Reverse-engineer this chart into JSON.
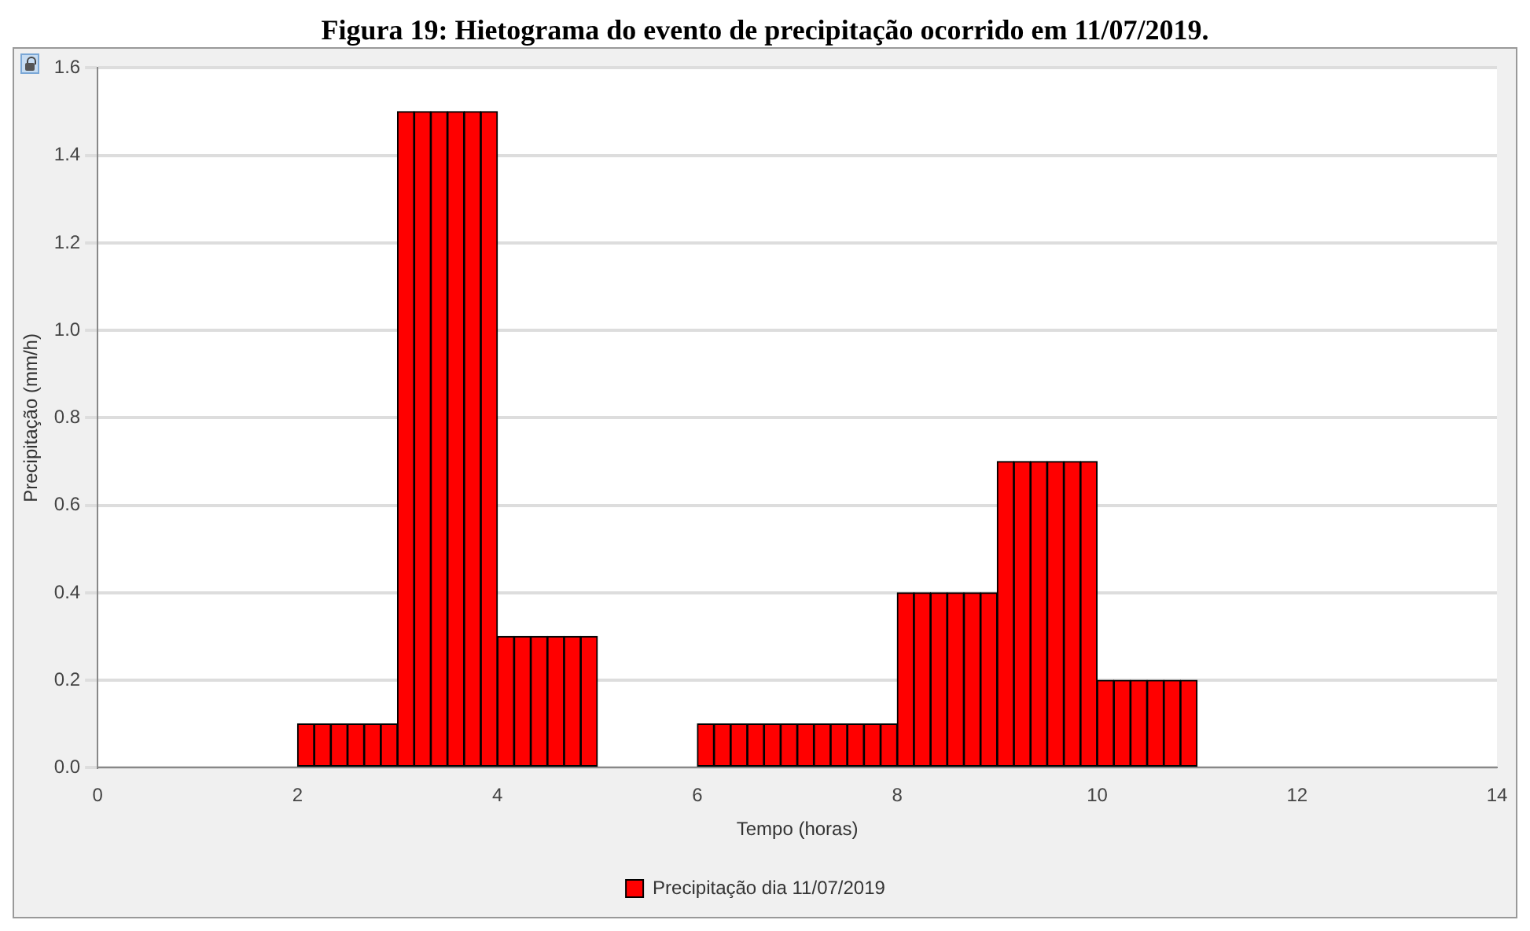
{
  "chart_data": {
    "type": "histogram",
    "title": "Figura 19: Hietograma do evento de precipitação ocorrido em 11/07/2019.",
    "xlabel": "Tempo (horas)",
    "ylabel": "Precipitação (mm/h)",
    "bins": [
      0,
      0.167,
      0.333,
      0.5,
      0.667,
      0.833,
      1,
      1.167,
      1.333,
      1.5,
      1.667,
      1.833,
      2,
      2.167,
      2.333,
      2.5,
      2.667,
      2.833,
      3,
      3.167,
      3.333,
      3.5,
      3.667,
      3.833,
      4,
      4.167,
      4.333,
      4.5,
      4.667,
      4.833,
      5,
      5.167,
      5.333,
      5.5,
      5.667,
      5.833,
      6,
      6.167,
      6.333,
      6.5,
      6.667,
      6.833,
      7,
      7.167,
      7.333,
      7.5,
      7.667,
      7.833,
      8,
      8.167,
      8.333,
      8.5,
      8.667,
      8.833,
      9,
      9.167,
      9.333,
      9.5,
      9.667,
      9.833,
      10,
      10.167,
      10.333,
      10.5,
      10.667,
      10.833,
      11,
      11.167,
      11.333,
      11.5,
      11.667,
      11.833,
      12,
      12.167,
      12.333,
      12.5,
      12.667,
      12.833,
      13
    ],
    "series": [
      {
        "name": "Precipitação dia 11/07/2019",
        "color": "#ff0000",
        "values": [
          0,
          0,
          0,
          0,
          0,
          0,
          0,
          0,
          0,
          0,
          0,
          0,
          0.1,
          0.1,
          0.1,
          0.1,
          0.1,
          0.1,
          1.5,
          1.5,
          1.5,
          1.5,
          1.5,
          1.5,
          0.3,
          0.3,
          0.3,
          0.3,
          0.3,
          0.3,
          0,
          0,
          0,
          0,
          0,
          0,
          0.1,
          0.1,
          0.1,
          0.1,
          0.1,
          0.1,
          0.1,
          0.1,
          0.1,
          0.1,
          0.1,
          0.1,
          0.4,
          0.4,
          0.4,
          0.4,
          0.4,
          0.4,
          0.7,
          0.7,
          0.7,
          0.7,
          0.7,
          0.7,
          0.2,
          0.2,
          0.2,
          0.2,
          0.2,
          0.2,
          0,
          0,
          0,
          0,
          0,
          0,
          0,
          0,
          0,
          0,
          0,
          0
        ]
      }
    ],
    "xlim": [
      0,
      14
    ],
    "xticks": [
      0,
      2,
      4,
      6,
      8,
      10,
      12,
      14
    ],
    "ylim": [
      0,
      1.6
    ],
    "yticks": [
      {
        "value": 0,
        "label": "0.0"
      },
      0.2,
      0.4,
      0.6,
      0.8,
      {
        "value": 1,
        "label": "1.0"
      },
      1.2,
      1.4,
      1.6
    ],
    "grid": "y",
    "legend": "bottom"
  }
}
